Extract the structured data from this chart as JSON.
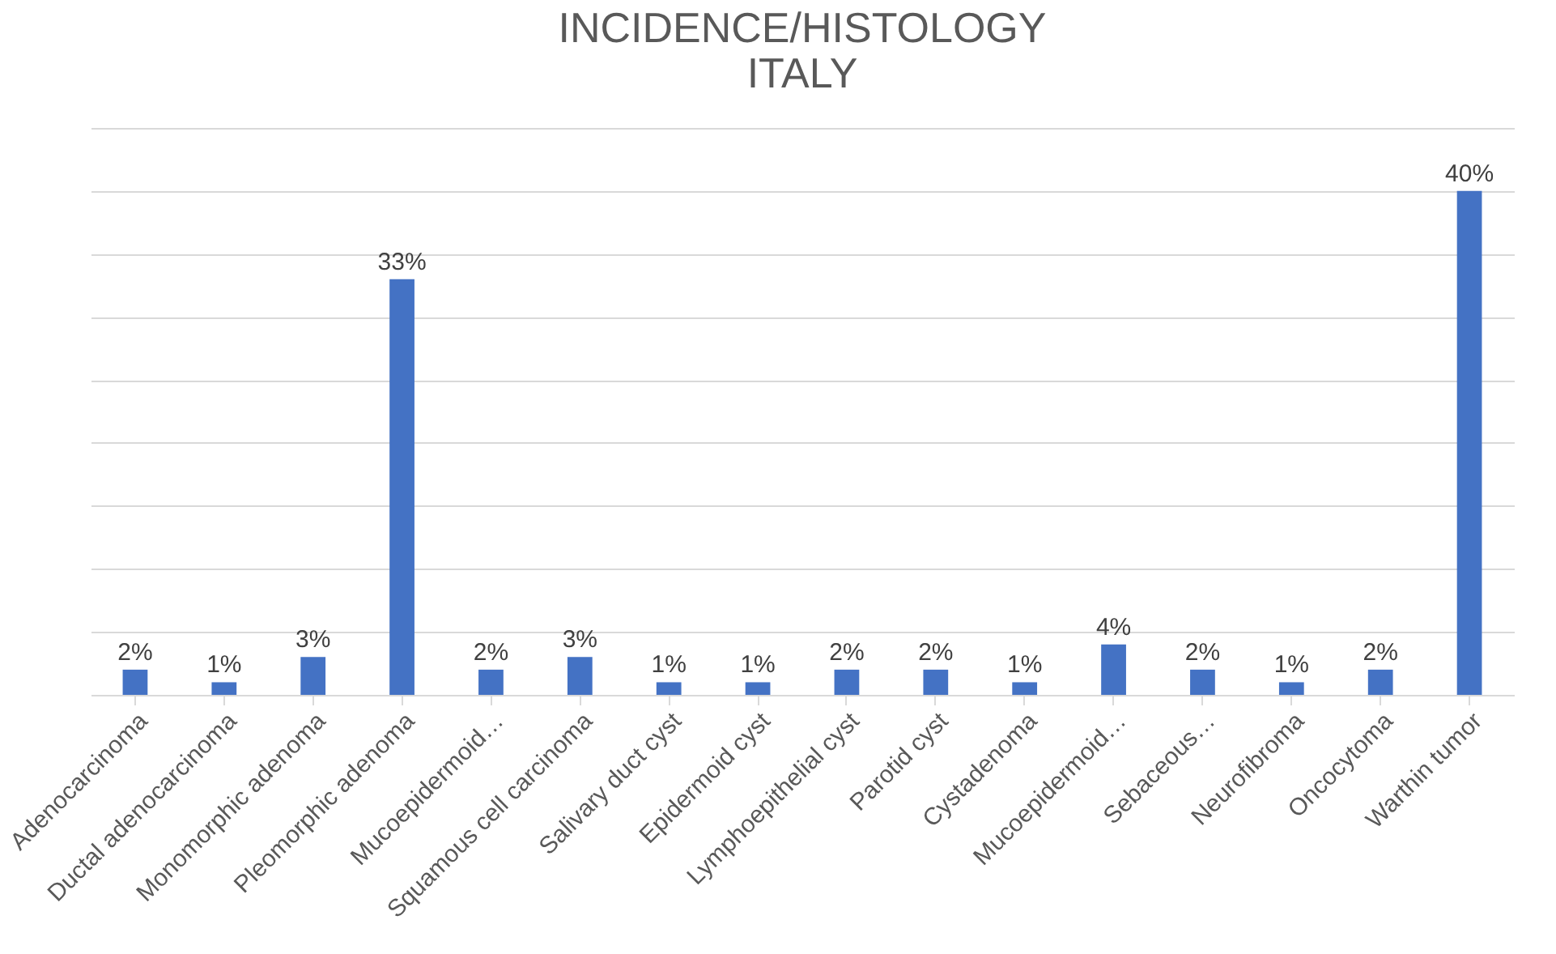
{
  "chart_data": {
    "type": "bar",
    "title": "INCIDENCE/HISTOLOGY\nITALY",
    "categories": [
      "Adenocarcinoma",
      "Ductal adenocarcinoma",
      "Monomorphic adenoma",
      "Pleomorphic adenoma",
      "Mucoepidermoid…",
      "Squamous cell carcinoma",
      "Salivary duct cyst",
      "Epidermoid cyst",
      "Lymphoepithelial cyst",
      "Parotid cyst",
      "Cystadenoma",
      "Mucoepidermoid…",
      "Sebaceous…",
      "Neurofibroma",
      "Oncocytoma",
      "Warthin tumor"
    ],
    "values": [
      2,
      1,
      3,
      33,
      2,
      3,
      1,
      1,
      2,
      2,
      1,
      4,
      2,
      1,
      2,
      40
    ],
    "value_labels": [
      "2%",
      "1%",
      "3%",
      "33%",
      "2%",
      "3%",
      "1%",
      "1%",
      "2%",
      "2%",
      "1%",
      "4%",
      "2%",
      "1%",
      "2%",
      "40%"
    ],
    "color": "#4472c4",
    "ylim": [
      0,
      45
    ],
    "yticks": [
      {
        "value": 0,
        "label": null
      },
      {
        "value": 5,
        "label": null
      },
      {
        "value": 10,
        "label": null
      },
      {
        "value": 15,
        "label": null
      },
      {
        "value": 20,
        "label": null
      },
      {
        "value": 25,
        "label": null
      },
      {
        "value": 30,
        "label": null
      },
      {
        "value": 35,
        "label": null
      },
      {
        "value": 40,
        "label": null
      },
      {
        "value": 45,
        "label": null
      }
    ],
    "grid": "y",
    "tick_labels": "x"
  }
}
